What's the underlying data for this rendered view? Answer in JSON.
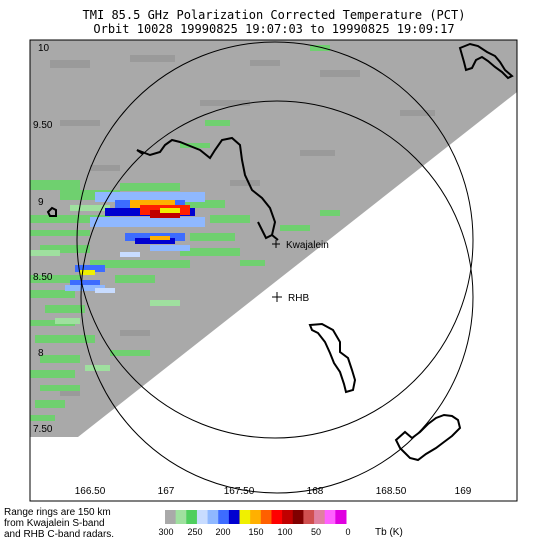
{
  "title": {
    "line1": "TMI 85.5 GHz Polarization Corrected Temperature (PCT)",
    "line2": "Orbit 10028 19990825 19:07:03 to 19990825 19:09:17"
  },
  "map": {
    "lon_ticks": [
      "166.50",
      "167",
      "167.50",
      "168",
      "168.50",
      "169"
    ],
    "lat_ticks": [
      "10",
      "9.50",
      "9",
      "8.50",
      "8",
      "7.50"
    ],
    "sites": [
      {
        "name": "Kwajalein",
        "marker": "+"
      },
      {
        "name": "RHB",
        "marker": "+"
      }
    ],
    "range_rings_km": 150,
    "swath_color": "#a9a9a9"
  },
  "note": {
    "line1": "Range rings are 150 km",
    "line2": "from Kwajalein S-band",
    "line3": "and RHB C-band radars."
  },
  "colorbar": {
    "labels": [
      "300",
      "250",
      "200",
      "150",
      "100",
      "50",
      "0"
    ],
    "unit": "Tb (K)",
    "colors": [
      "#a9a9a9",
      "#9fe09f",
      "#4fcf5f",
      "#c8dcff",
      "#8fb8ff",
      "#3d6cff",
      "#0000d0",
      "#f0f000",
      "#ffb000",
      "#ff6000",
      "#ff0000",
      "#c00000",
      "#800000",
      "#d05050",
      "#e080a0",
      "#ff60ff",
      "#e000e0"
    ]
  },
  "chart_data": {
    "type": "heatmap",
    "units": "K",
    "cells": [
      {
        "lon": 166.55,
        "lat": 9.08,
        "v": 255
      },
      {
        "lon": 166.62,
        "lat": 9.12,
        "v": 240
      },
      {
        "lon": 166.75,
        "lat": 9.05,
        "v": 230
      },
      {
        "lon": 166.85,
        "lat": 9.0,
        "v": 200
      },
      {
        "lon": 166.92,
        "lat": 8.98,
        "v": 150
      },
      {
        "lon": 167.0,
        "lat": 8.98,
        "v": 120
      },
      {
        "lon": 167.08,
        "lat": 8.96,
        "v": 120
      },
      {
        "lon": 167.15,
        "lat": 8.96,
        "v": 160
      },
      {
        "lon": 166.95,
        "lat": 9.06,
        "v": 190
      },
      {
        "lon": 167.1,
        "lat": 9.05,
        "v": 190
      },
      {
        "lon": 167.05,
        "lat": 8.85,
        "v": 195
      },
      {
        "lon": 167.12,
        "lat": 8.75,
        "v": 170
      },
      {
        "lon": 166.7,
        "lat": 8.6,
        "v": 160
      },
      {
        "lon": 166.72,
        "lat": 8.52,
        "v": 210
      }
    ]
  }
}
